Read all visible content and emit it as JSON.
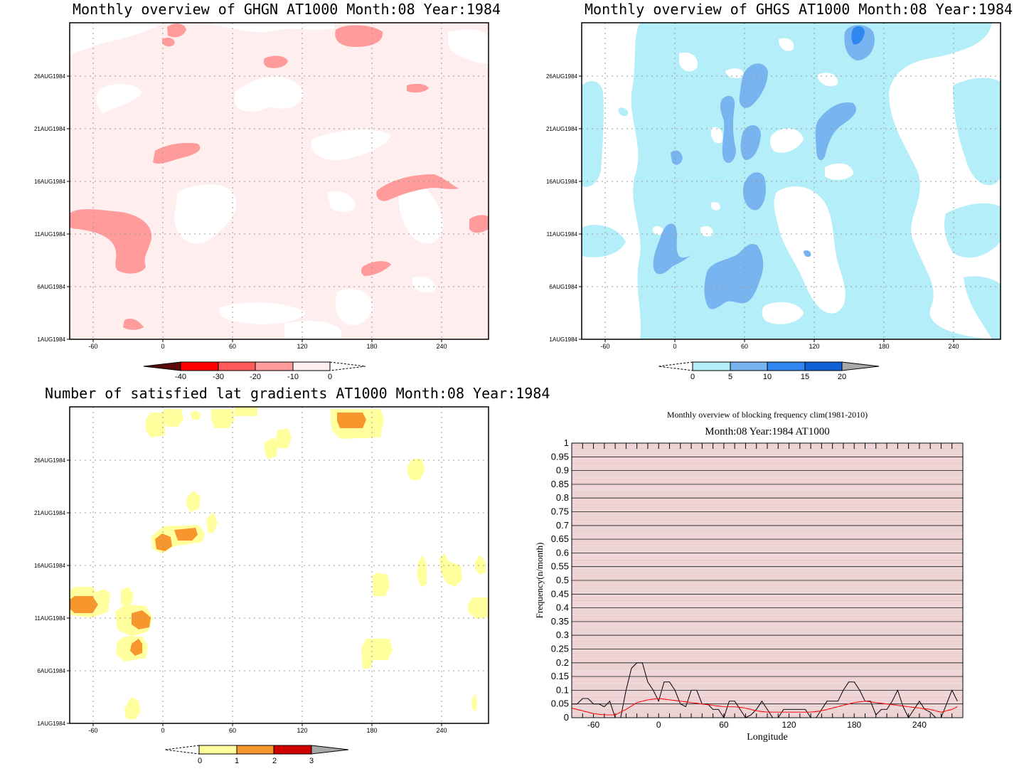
{
  "chart_data": [
    {
      "type": "heatmap",
      "title": "Monthly overview of GHGN AT1000 Month:08 Year:1984",
      "xlim": [
        -80,
        280
      ],
      "x_ticks": [
        "-60",
        "0",
        "60",
        "120",
        "180",
        "240"
      ],
      "y_ticks": [
        "1AUG1984",
        "6AUG1984",
        "11AUG1984",
        "16AUG1984",
        "21AUG1984",
        "26AUG1984"
      ],
      "colorbar": {
        "labels": [
          "-40",
          "-30",
          "-20",
          "-10",
          "0"
        ],
        "colors": [
          "#5a0a0a",
          "#ff0000",
          "#ff5a5a",
          "#ff9b9b",
          "#ffeeee"
        ]
      }
    },
    {
      "type": "heatmap",
      "title": "Monthly overview of GHGS AT1000 Month:08 Year:1984",
      "xlim": [
        -80,
        280
      ],
      "x_ticks": [
        "-60",
        "0",
        "60",
        "120",
        "180",
        "240"
      ],
      "y_ticks": [
        "1AUG1984",
        "6AUG1984",
        "11AUG1984",
        "16AUG1984",
        "21AUG1984",
        "26AUG1984"
      ],
      "colorbar": {
        "labels": [
          "0",
          "5",
          "10",
          "15",
          "20"
        ],
        "colors": [
          "#b4eef8",
          "#78b4f0",
          "#2e86ee",
          "#1060d8",
          "#a8a8a8"
        ]
      }
    },
    {
      "type": "heatmap",
      "title": "Number of satisfied lat gradients AT1000 Month:08 Year:1984",
      "xlim": [
        -80,
        280
      ],
      "x_ticks": [
        "-60",
        "0",
        "60",
        "120",
        "180",
        "240"
      ],
      "y_ticks": [
        "1AUG1984",
        "6AUG1984",
        "11AUG1984",
        "16AUG1984",
        "21AUG1984",
        "26AUG1984"
      ],
      "colorbar": {
        "labels": [
          "0",
          "1",
          "2",
          "3"
        ],
        "colors": [
          "#ffff9e",
          "#f8962e",
          "#d00000",
          "#a8a8a8"
        ]
      }
    },
    {
      "type": "line",
      "title": "Monthly overview of blocking frequency clim(1981-2010)",
      "subtitle": "Month:08 Year:1984  AT1000",
      "xlabel": "Longitude",
      "ylabel": "Frequency(n/month)",
      "xlim": [
        -80,
        280
      ],
      "ylim": [
        0,
        1
      ],
      "x_ticks": [
        "-60",
        "0",
        "60",
        "120",
        "180",
        "240"
      ],
      "y_ticks": [
        "0",
        "0.05",
        "0.1",
        "0.15",
        "0.2",
        "0.25",
        "0.3",
        "0.35",
        "0.4",
        "0.45",
        "0.5",
        "0.55",
        "0.6",
        "0.65",
        "0.7",
        "0.75",
        "0.8",
        "0.85",
        "0.9",
        "0.95",
        "1"
      ],
      "series": [
        {
          "color": "#000000",
          "x": [
            -80,
            -75,
            -70,
            -65,
            -60,
            -55,
            -50,
            -45,
            -40,
            -35,
            -30,
            -25,
            -20,
            -15,
            -10,
            -5,
            0,
            5,
            10,
            15,
            20,
            25,
            30,
            35,
            40,
            45,
            50,
            55,
            60,
            65,
            70,
            75,
            80,
            85,
            90,
            95,
            100,
            105,
            110,
            115,
            120,
            125,
            130,
            135,
            140,
            145,
            150,
            155,
            160,
            165,
            170,
            175,
            180,
            185,
            190,
            195,
            200,
            205,
            210,
            215,
            220,
            225,
            230,
            235,
            240,
            245,
            250,
            255,
            260,
            265,
            270,
            275
          ],
          "y": [
            0.05,
            0.05,
            0.07,
            0.07,
            0.05,
            0.05,
            0.04,
            0.06,
            0,
            0,
            0.1,
            0.18,
            0.2,
            0.2,
            0.13,
            0.1,
            0.06,
            0.13,
            0.13,
            0.1,
            0.05,
            0.04,
            0.1,
            0.1,
            0.05,
            0.05,
            0.03,
            0.03,
            0,
            0.06,
            0.06,
            0.03,
            0,
            0.01,
            0.03,
            0.06,
            0.03,
            0,
            0,
            0.03,
            0.03,
            0.03,
            0.03,
            0.03,
            0,
            0,
            0.03,
            0.06,
            0.06,
            0.06,
            0.1,
            0.13,
            0.13,
            0.1,
            0.06,
            0.06,
            0.01,
            0.03,
            0.03,
            0.06,
            0.1,
            0.04,
            0,
            0.03,
            0.06,
            0.03,
            0.02,
            0,
            0,
            0.05,
            0.1,
            0.06
          ]
        },
        {
          "color": "#ff0000",
          "x": [
            -80,
            -70,
            -60,
            -50,
            -40,
            -30,
            -20,
            -10,
            0,
            10,
            20,
            30,
            40,
            50,
            60,
            70,
            80,
            90,
            100,
            110,
            120,
            130,
            140,
            150,
            160,
            170,
            180,
            190,
            200,
            210,
            220,
            230,
            240,
            250,
            260,
            270,
            275
          ],
          "y": [
            0.035,
            0.025,
            0.015,
            0.01,
            0.01,
            0.03,
            0.055,
            0.065,
            0.07,
            0.065,
            0.06,
            0.055,
            0.05,
            0.045,
            0.04,
            0.04,
            0.035,
            0.025,
            0.02,
            0.02,
            0.02,
            0.02,
            0.02,
            0.025,
            0.035,
            0.045,
            0.055,
            0.06,
            0.055,
            0.05,
            0.045,
            0.04,
            0.035,
            0.03,
            0.02,
            0.03,
            0.04
          ]
        }
      ]
    }
  ]
}
